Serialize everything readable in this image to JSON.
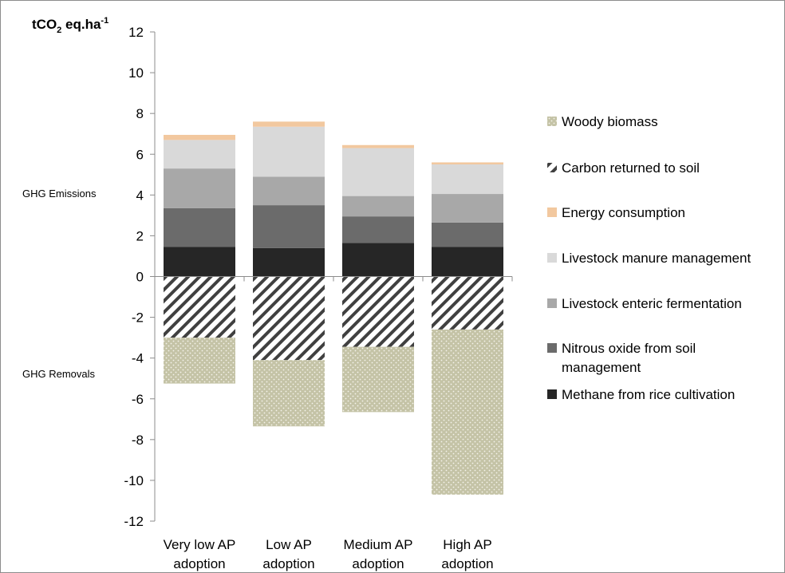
{
  "chart_data": {
    "type": "bar",
    "stacked": true,
    "unit_label": {
      "base": "tCO",
      "sub": "2",
      "mid": " eq.ha",
      "sup": "-1"
    },
    "annotations": [
      "GHG Emissions",
      "GHG Removals"
    ],
    "categories": [
      [
        "Very low AP",
        "adoption"
      ],
      [
        "Low AP",
        "adoption"
      ],
      [
        "Medium AP",
        "adoption"
      ],
      [
        "High AP",
        "adoption"
      ]
    ],
    "ylim": [
      -12,
      12
    ],
    "yticks": [
      12,
      10,
      8,
      6,
      4,
      2,
      0,
      -2,
      -4,
      -6,
      -8,
      -10,
      -12
    ],
    "grid": false,
    "legend_position": "right",
    "series": [
      {
        "name": "Methane from rice cultivation",
        "values": [
          1.45,
          1.4,
          1.65,
          1.45
        ],
        "color": "#262626",
        "pattern": "solid"
      },
      {
        "name": "Nitrous oxide from soil management",
        "values": [
          1.9,
          2.1,
          1.3,
          1.2
        ],
        "color": "#6b6b6b",
        "pattern": "solid"
      },
      {
        "name": "Livestock enteric fermentation",
        "values": [
          1.95,
          1.4,
          1.0,
          1.4
        ],
        "color": "#a8a8a8",
        "pattern": "solid"
      },
      {
        "name": "Livestock manure management",
        "values": [
          1.4,
          2.45,
          2.35,
          1.45
        ],
        "color": "#d9d9d9",
        "pattern": "solid"
      },
      {
        "name": "Energy consumption",
        "values": [
          0.25,
          0.25,
          0.15,
          0.1
        ],
        "color": "#f2c89f",
        "pattern": "solid"
      },
      {
        "name": "Carbon returned to soil",
        "values": [
          -3.0,
          -4.1,
          -3.45,
          -2.6
        ],
        "color": "#404040",
        "pattern": "hatch"
      },
      {
        "name": "Woody biomass",
        "values": [
          -2.25,
          -3.25,
          -3.2,
          -8.1
        ],
        "color": "#c4c3a6",
        "pattern": "dots"
      }
    ],
    "legend_order": [
      "Woody biomass",
      "Carbon returned to soil",
      "Energy consumption",
      "Livestock manure management",
      "Livestock enteric fermentation",
      [
        "Nitrous oxide from soil",
        "management"
      ],
      "Methane from rice cultivation"
    ]
  }
}
